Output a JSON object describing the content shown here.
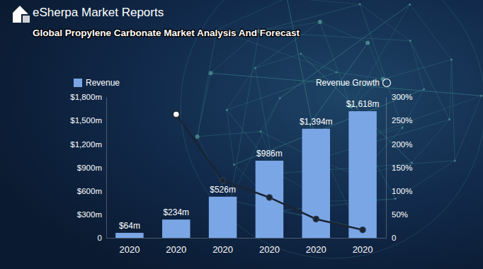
{
  "chart_data": {
    "type": "bar",
    "title": "Global Propylene Carbonate Market Analysis And Forecast",
    "annotations": [
      "eSherpa Market Reports"
    ],
    "categories": [
      "2020",
      "2020",
      "2020",
      "2020",
      "2020",
      "2020"
    ],
    "series": [
      {
        "name": "Revenue",
        "type": "bar",
        "color": "#7aa6e6",
        "values": [
          64,
          234,
          526,
          986,
          1394,
          1618
        ],
        "value_labels": [
          "$64m",
          "$234m",
          "$526m",
          "$986m",
          "$1,394m",
          "$1,618m"
        ],
        "data_labels": true
      },
      {
        "name": "Revenue Growth",
        "type": "line",
        "axis": "y2",
        "color": "#1b2432",
        "marker": "circle",
        "values": [
          null,
          263,
          122,
          86,
          40,
          17
        ]
      }
    ],
    "ylim": [
      0,
      1800
    ],
    "yticks": [
      0,
      {
        "value": 300,
        "label": "$300m"
      },
      {
        "value": 600,
        "label": "$600m"
      },
      {
        "value": 900,
        "label": "$900m"
      },
      {
        "value": 1200,
        "label": "$1,200m"
      },
      {
        "value": 1500,
        "label": "$1,500m"
      },
      {
        "value": 1800,
        "label": "$1,800m"
      }
    ],
    "y2lim": [
      0,
      300
    ],
    "y2ticks": [
      0,
      {
        "value": 50,
        "label": "50%"
      },
      {
        "value": 100,
        "label": "100%"
      },
      {
        "value": 150,
        "label": "150%"
      },
      {
        "value": 200,
        "label": "200%"
      },
      {
        "value": 250,
        "label": "250%"
      },
      {
        "value": 300,
        "label": "300%"
      }
    ],
    "grid": false,
    "legend": "top"
  }
}
